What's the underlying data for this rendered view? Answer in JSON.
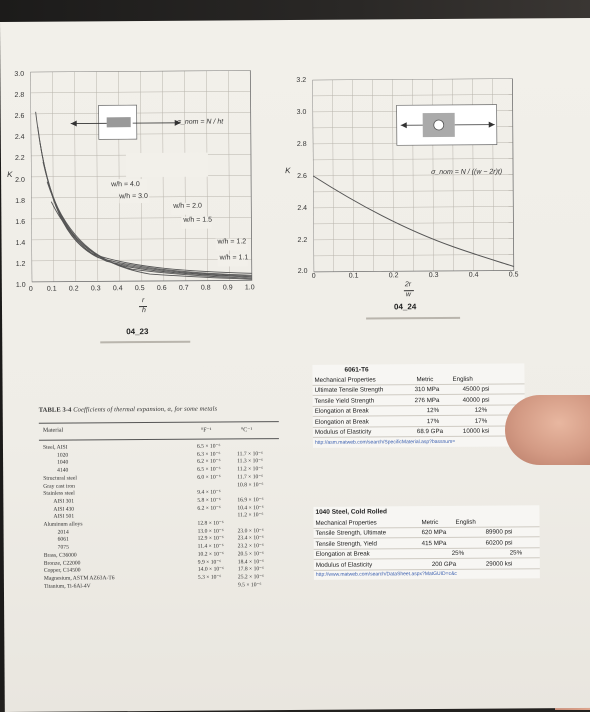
{
  "left_graph": {
    "y_ticks": [
      "3.0",
      "2.8",
      "2.6",
      "2.4",
      "2.2",
      "2.0",
      "1.8",
      "1.6",
      "1.4",
      "1.2",
      "1.0"
    ],
    "x_ticks": [
      "0",
      "0.1",
      "0.2",
      "0.3",
      "0.4",
      "0.5",
      "0.6",
      "0.7",
      "0.8",
      "0.9",
      "1.0"
    ],
    "y_axis_label": "K",
    "x_axis_label_top": "r",
    "x_axis_label_bottom": "h",
    "formula_top": "σ_nom = N / ht",
    "ratios": [
      "w/h = 4.0",
      "w/h = 3.0",
      "w/h = 2.0",
      "w/h = 1.5",
      "w/h = 1.2",
      "w/h = 1.1"
    ],
    "caption": "04_23"
  },
  "right_graph": {
    "y_ticks": [
      "3.2",
      "3.0",
      "2.8",
      "2.6",
      "2.4",
      "2.2",
      "2.0"
    ],
    "x_ticks": [
      "0",
      "0.1",
      "0.2",
      "0.3",
      "0.4",
      "0.5"
    ],
    "y_axis_label": "K",
    "x_axis_label_top": "2r",
    "x_axis_label_bottom": "w",
    "formula": "σ_nom = N / ((w − 2r)t)",
    "caption": "04_24"
  },
  "table_3_4": {
    "title_bold": "TABLE 3-4",
    "title_rest": "Coefficients of thermal expansion, α, for some metals",
    "unit_f": "°F⁻¹",
    "unit_c": "°C⁻¹",
    "header_material": "Material",
    "rows": [
      {
        "name": "Steel, AISI",
        "f": "",
        "c": ""
      },
      {
        "name": "1020",
        "f": "6.5 × 10⁻⁶",
        "c": "11.7 × 10⁻⁶"
      },
      {
        "name": "1040",
        "f": "6.3 × 10⁻⁶",
        "c": "11.3 × 10⁻⁶"
      },
      {
        "name": "4140",
        "f": "6.2 × 10⁻⁶",
        "c": "11.2 × 10⁻⁶"
      },
      {
        "name": "Structural steel",
        "f": "6.5 × 10⁻⁶",
        "c": "11.7 × 10⁻⁶"
      },
      {
        "name": "Gray cast iron",
        "f": "6.0 × 10⁻⁶",
        "c": "10.8 × 10⁻⁶"
      },
      {
        "name": "Stainless steel",
        "f": "",
        "c": ""
      },
      {
        "name": "AISI 301",
        "f": "9.4 × 10⁻⁶",
        "c": "16.9 × 10⁻⁶"
      },
      {
        "name": "AISI 430",
        "f": "5.8 × 10⁻⁶",
        "c": "10.4 × 10⁻⁶"
      },
      {
        "name": "AISI 501",
        "f": "6.2 × 10⁻⁶",
        "c": "11.2 × 10⁻⁶"
      },
      {
        "name": "Aluminum alloys",
        "f": "",
        "c": ""
      },
      {
        "name": "2014",
        "f": "12.8 × 10⁻⁶",
        "c": "23.0 × 10⁻⁶"
      },
      {
        "name": "6061",
        "f": "13.0 × 10⁻⁶",
        "c": "23.4 × 10⁻⁶"
      },
      {
        "name": "7075",
        "f": "12.9 × 10⁻⁶",
        "c": "23.2 × 10⁻⁶"
      },
      {
        "name": "Brass, C36000",
        "f": "11.4 × 10⁻⁶",
        "c": "20.5 × 10⁻⁶"
      },
      {
        "name": "Bronze, C22000",
        "f": "10.2 × 10⁻⁶",
        "c": "18.4 × 10⁻⁶"
      },
      {
        "name": "Copper, C14500",
        "f": "9.9 × 10⁻⁶",
        "c": "17.8 × 10⁻⁶"
      },
      {
        "name": "Magnesium, ASTM AZ63A-T6",
        "f": "14.0 × 10⁻⁶",
        "c": "25.2 × 10⁻⁶"
      },
      {
        "name": "Titanium, Ti-6Al-4V",
        "f": "5.3 × 10⁻⁶",
        "c": "9.5 × 10⁻⁶"
      }
    ]
  },
  "card_6061": {
    "title": "6061-T6",
    "header": [
      "Mechanical Properties",
      "Metric",
      "English"
    ],
    "rows": [
      [
        "Ultimate Tensile Strength",
        "310 MPa",
        "45000 psi"
      ],
      [
        "Tensile Yield Strength",
        "276 MPa",
        "40000 psi"
      ],
      [
        "Elongation at Break",
        "12%",
        "12%"
      ],
      [
        "Elongation at Break",
        "17%",
        "17%"
      ],
      [
        "Modulus of Elasticity",
        "68.9 GPa",
        "10000 ksi"
      ]
    ],
    "link": "http://asm.matweb.com/search/SpecificMaterial.asp?bassnum="
  },
  "card_1040": {
    "title": "1040 Steel, Cold Rolled",
    "header": [
      "Mechanical Properties",
      "Metric",
      "English"
    ],
    "rows": [
      [
        "Tensile Strength, Ultimate",
        "620 MPa",
        "89900 psi"
      ],
      [
        "Tensile Strength, Yield",
        "415 MPa",
        "60200 psi"
      ],
      [
        "Elongation at Break",
        "25%",
        "25%"
      ],
      [
        "Modulus of Elasticity",
        "200 GPa",
        "29000 ksi"
      ]
    ],
    "link": "http://www.matweb.com/search/DataSheet.aspx?MatGUID=c&c"
  }
}
